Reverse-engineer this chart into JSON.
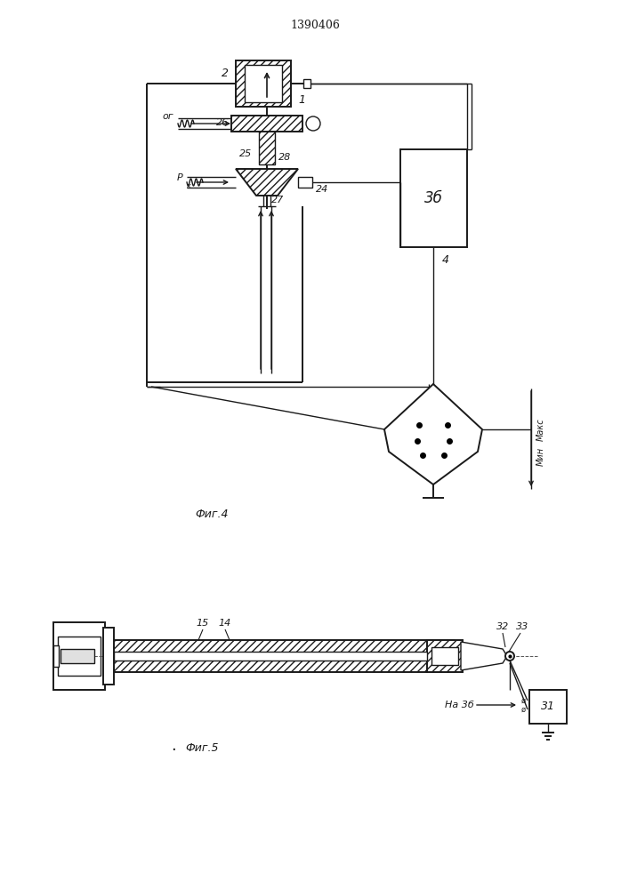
{
  "title": "1390406",
  "fig4_label": "Фиг.4",
  "fig5_label": "Фиг.5",
  "bg_color": "#ffffff",
  "line_color": "#1a1a1a",
  "lw": 1.0,
  "lw2": 1.4
}
